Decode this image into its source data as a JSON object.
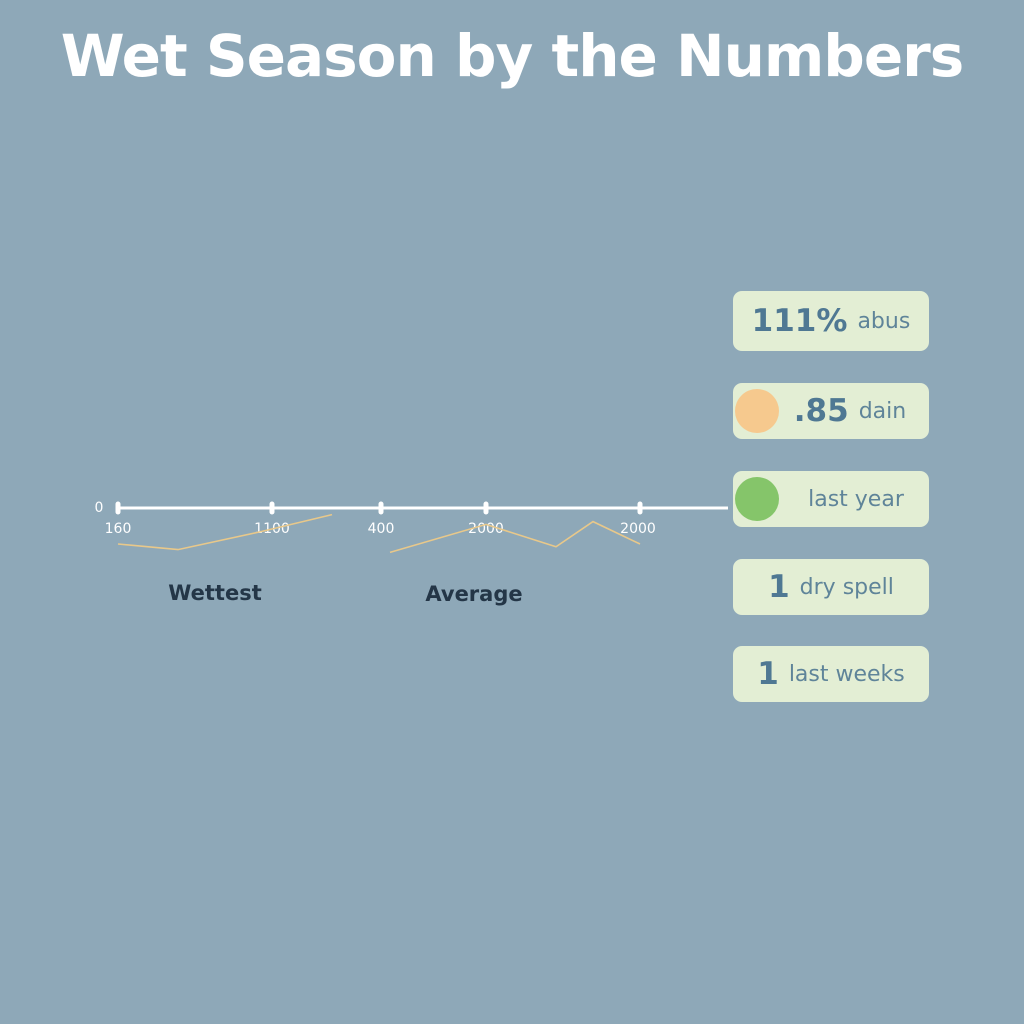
{
  "title": "Wet Season by the Numbers",
  "chart_data": {
    "type": "line",
    "x_tick_labels": [
      "0",
      "160",
      "1100",
      "400",
      "2000",
      "2000"
    ],
    "group_labels": [
      "Wettest",
      "Average"
    ],
    "series": [
      {
        "color": "#e8c88a",
        "values": [
          0.0,
          -0.4,
          0.9,
          2.1
        ]
      },
      {
        "color": "#e8c88a",
        "values": [
          -0.6,
          1.4,
          -0.2,
          1.6,
          0.0
        ]
      }
    ],
    "grid": false
  },
  "stats": [
    {
      "value": "111%",
      "label": "abus",
      "dot_color": ""
    },
    {
      "value": ".85",
      "label": "dain",
      "dot_color": "#f6c98e"
    },
    {
      "value": "",
      "label": "last year",
      "dot_color": "#85c56a"
    },
    {
      "value": "1",
      "label": "dry spell",
      "dot_color": ""
    },
    {
      "value": "1",
      "label": "last weeks",
      "dot_color": ""
    }
  ]
}
